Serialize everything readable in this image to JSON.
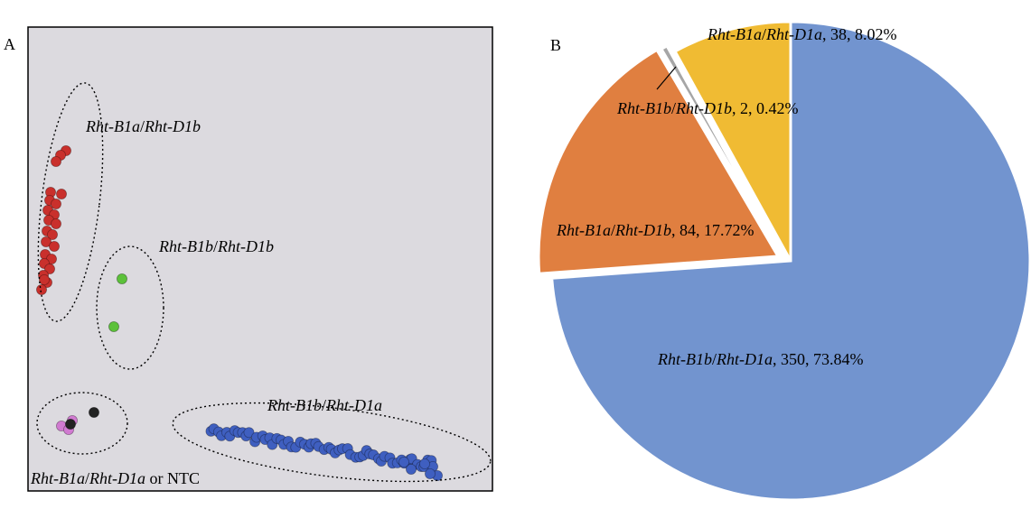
{
  "panel_a": {
    "letter": "A",
    "bg_color": "#dcdadf",
    "groups": [
      {
        "name_italic": "Rht-B1a",
        "sep": "/",
        "name2_italic": "Rht-D1b",
        "suffix": "",
        "color": "#c9302c"
      },
      {
        "name_italic": "Rht-B1b",
        "sep": "/",
        "name2_italic": "Rht-D1b",
        "suffix": "",
        "color": "#5cc13a"
      },
      {
        "name_italic": "Rht-B1b",
        "sep": "/",
        "name2_italic": "Rht-D1a",
        "suffix": "",
        "color": "#3f5fc0"
      },
      {
        "name_italic": "Rht-B1a",
        "sep": "/",
        "name2_italic": "Rht-D1a",
        "suffix": " or NTC",
        "color": "#d07ad0",
        "ntc_color": "#222222"
      }
    ]
  },
  "panel_b": {
    "letter": "B"
  },
  "chart_data": [
    {
      "type": "scatter",
      "title": "",
      "clusters": [
        {
          "name": "Rht-B1a/Rht-D1b",
          "count": 84
        },
        {
          "name": "Rht-B1b/Rht-D1b",
          "count": 2
        },
        {
          "name": "Rht-B1b/Rht-D1a",
          "count": 350
        },
        {
          "name": "Rht-B1a/Rht-D1a or NTC",
          "count": 38
        }
      ]
    },
    {
      "type": "pie",
      "title": "",
      "slices": [
        {
          "name_italic_1": "Rht-B1b",
          "name_italic_2": "Rht-D1a",
          "count": 350,
          "percent": 73.84,
          "label": ", 350, 73.84%",
          "color": "#7294cf"
        },
        {
          "name_italic_1": "Rht-B1a",
          "name_italic_2": "Rht-D1b",
          "count": 84,
          "percent": 17.72,
          "label": ", 84, 17.72%",
          "color": "#e07f40"
        },
        {
          "name_italic_1": "Rht-B1b",
          "name_italic_2": "Rht-D1b",
          "count": 2,
          "percent": 0.42,
          "label": ", 2, 0.42%",
          "color": "#a6a6a6"
        },
        {
          "name_italic_1": "Rht-B1a",
          "name_italic_2": "Rht-D1a",
          "count": 38,
          "percent": 8.02,
          "label": ", 38, 8.02%",
          "color": "#f0bb33"
        }
      ]
    }
  ]
}
